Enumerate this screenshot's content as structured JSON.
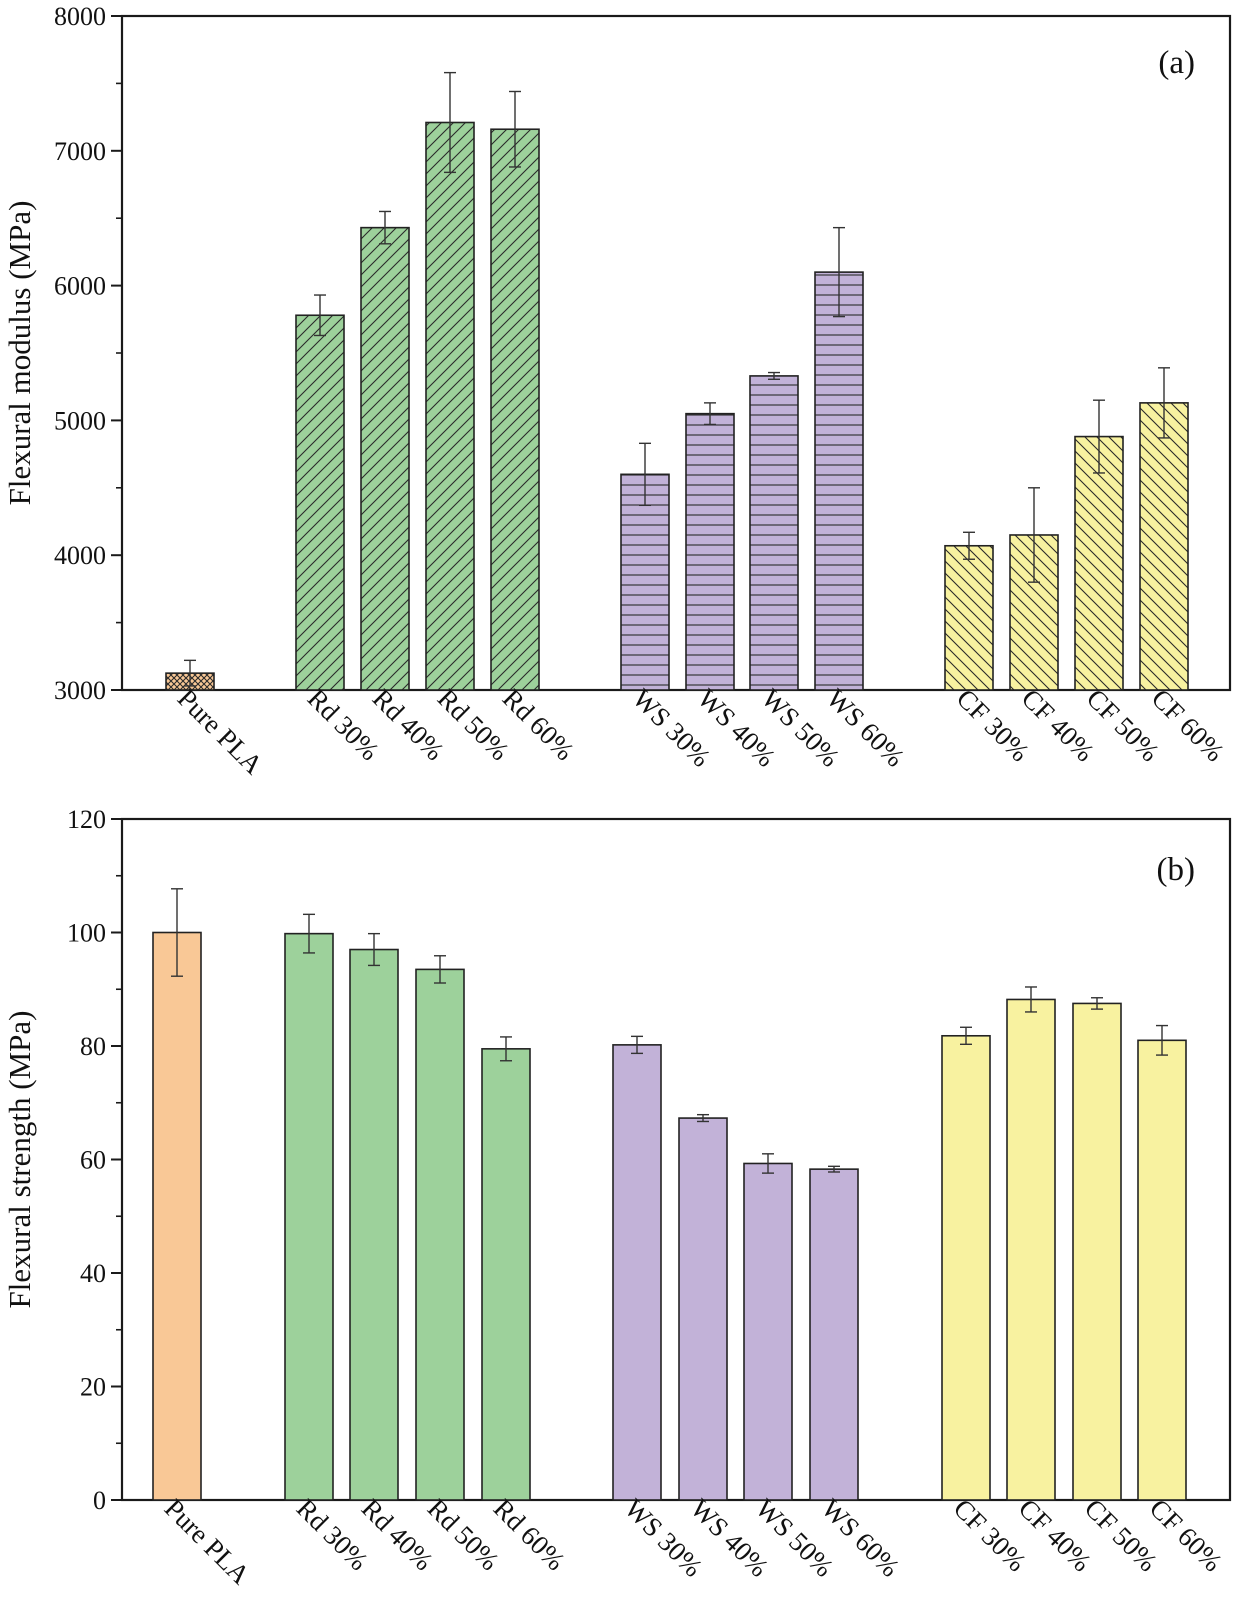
{
  "figure": {
    "colors": {
      "pla": "#F9C896",
      "rd": "#9DD19B",
      "ws": "#C2B2D8",
      "cf": "#F8F2A0",
      "stroke": "#222222"
    }
  },
  "chart_data": [
    {
      "type": "bar",
      "panel_tag": "(a)",
      "ylabel": "Flexural modulus (MPa)",
      "ylim": [
        3000,
        8000
      ],
      "yticks": [
        "3000",
        "4000",
        "5000",
        "6000",
        "7000",
        "8000"
      ],
      "grid": false,
      "legend": "none",
      "categories": [
        "Pure PLA",
        "Rd 30%",
        "Rd 40%",
        "Rd 50%",
        "Rd 60%",
        "WS 30%",
        "WS 40%",
        "WS 50%",
        "WS 60%",
        "CF 30%",
        "CF 40%",
        "CF 50%",
        "CF 60%"
      ],
      "groups": [
        "pla",
        "rd",
        "rd",
        "rd",
        "rd",
        "ws",
        "ws",
        "ws",
        "ws",
        "cf",
        "cf",
        "cf",
        "cf"
      ],
      "patterns": [
        "crosshatch",
        "diag-up",
        "diag-up",
        "diag-up",
        "diag-up",
        "horizontal",
        "horizontal",
        "horizontal",
        "horizontal",
        "diag-down",
        "diag-down",
        "diag-down",
        "diag-down"
      ],
      "values": [
        3125,
        5780,
        6430,
        7210,
        7160,
        4600,
        5050,
        5330,
        6100,
        4070,
        4150,
        4880,
        5130
      ],
      "errors": [
        95,
        150,
        120,
        370,
        280,
        230,
        80,
        25,
        330,
        100,
        350,
        270,
        260
      ]
    },
    {
      "type": "bar",
      "panel_tag": "(b)",
      "ylabel": "Flexural strength (MPa)",
      "ylim": [
        0,
        120
      ],
      "yticks": [
        "0",
        "20",
        "40",
        "60",
        "80",
        "100",
        "120"
      ],
      "grid": false,
      "legend": "none",
      "categories": [
        "Pure PLA",
        "Rd 30%",
        "Rd 40%",
        "Rd 50%",
        "Rd 60%",
        "WS 30%",
        "WS 40%",
        "WS 50%",
        "WS 60%",
        "CF 30%",
        "CF 40%",
        "CF 50%",
        "CF 60%"
      ],
      "groups": [
        "pla",
        "rd",
        "rd",
        "rd",
        "rd",
        "ws",
        "ws",
        "ws",
        "ws",
        "cf",
        "cf",
        "cf",
        "cf"
      ],
      "patterns": [
        "solid",
        "solid",
        "solid",
        "solid",
        "solid",
        "solid",
        "solid",
        "solid",
        "solid",
        "solid",
        "solid",
        "solid",
        "solid"
      ],
      "values": [
        100,
        99.8,
        97,
        93.5,
        79.5,
        80.2,
        67.3,
        59.3,
        58.3,
        81.8,
        88.2,
        87.5,
        81
      ],
      "errors": [
        7.7,
        3.4,
        2.8,
        2.4,
        2.1,
        1.5,
        0.6,
        1.7,
        0.5,
        1.5,
        2.2,
        1.0,
        2.6
      ]
    }
  ]
}
